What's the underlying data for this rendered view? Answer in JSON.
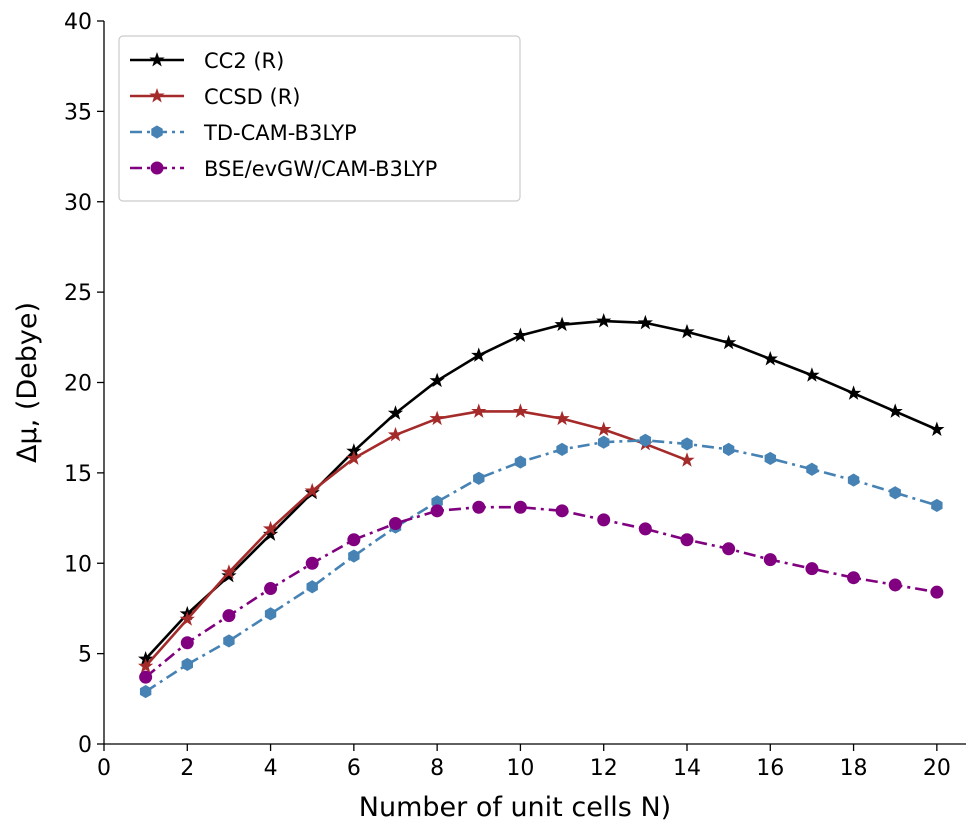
{
  "chart_data": {
    "type": "line",
    "xlabel": "Number of unit cells N)",
    "ylabel": "Δμ, (Debye)",
    "xlim": [
      0,
      20.7
    ],
    "ylim": [
      0,
      40
    ],
    "xticks": [
      "0",
      "2",
      "4",
      "6",
      "8",
      "10",
      "12",
      "14",
      "16",
      "18",
      "20"
    ],
    "yticks": [
      "0",
      "5",
      "10",
      "15",
      "20",
      "25",
      "30",
      "35",
      "40"
    ],
    "grid": false,
    "legend_position": "top-left",
    "series": [
      {
        "name": "CC2 (R)",
        "color": "#000000",
        "line_style": "solid",
        "marker": "star",
        "x": [
          1,
          2,
          3,
          4,
          5,
          6,
          7,
          8,
          9,
          10,
          11,
          12,
          13,
          14,
          15,
          16,
          17,
          18,
          19,
          20
        ],
        "y": [
          4.7,
          7.2,
          9.3,
          11.6,
          13.9,
          16.2,
          18.3,
          20.1,
          21.5,
          22.6,
          23.2,
          23.4,
          23.3,
          22.8,
          22.2,
          21.3,
          20.4,
          19.4,
          18.4,
          17.4
        ]
      },
      {
        "name": "CCSD (R)",
        "color": "#a52a2a",
        "line_style": "solid",
        "marker": "star",
        "x": [
          1,
          2,
          3,
          4,
          5,
          6,
          7,
          8,
          9,
          10,
          11,
          12,
          13,
          14
        ],
        "y": [
          4.3,
          6.9,
          9.5,
          11.9,
          14.0,
          15.8,
          17.1,
          18.0,
          18.4,
          18.4,
          18.0,
          17.4,
          16.6,
          15.7
        ]
      },
      {
        "name": "TD-CAM-B3LYP",
        "color": "#4682b4",
        "line_style": "dashdot",
        "marker": "hexagon",
        "x": [
          1,
          2,
          3,
          4,
          5,
          6,
          7,
          8,
          9,
          10,
          11,
          12,
          13,
          14,
          15,
          16,
          17,
          18,
          19,
          20
        ],
        "y": [
          2.9,
          4.4,
          5.7,
          7.2,
          8.7,
          10.4,
          12.0,
          13.4,
          14.7,
          15.6,
          16.3,
          16.7,
          16.8,
          16.6,
          16.3,
          15.8,
          15.2,
          14.6,
          13.9,
          13.2
        ]
      },
      {
        "name": "BSE/evGW/CAM-B3LYP",
        "color": "#800080",
        "line_style": "dashdot",
        "marker": "circle",
        "x": [
          1,
          2,
          3,
          4,
          5,
          6,
          7,
          8,
          9,
          10,
          11,
          12,
          13,
          14,
          15,
          16,
          17,
          18,
          19,
          20
        ],
        "y": [
          3.7,
          5.6,
          7.1,
          8.6,
          10.0,
          11.3,
          12.2,
          12.9,
          13.1,
          13.1,
          12.9,
          12.4,
          11.9,
          11.3,
          10.8,
          10.2,
          9.7,
          9.2,
          8.8,
          8.4
        ]
      }
    ]
  }
}
